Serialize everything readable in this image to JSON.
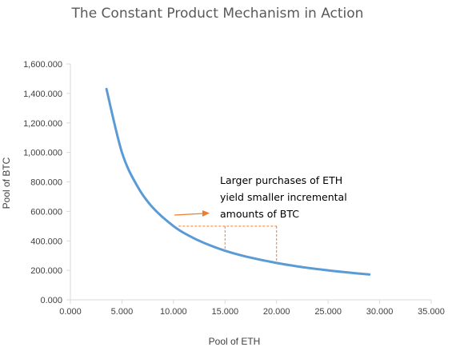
{
  "chart_data": {
    "type": "line",
    "title": "The Constant Product Mechanism in Action",
    "xlabel": "Pool of ETH",
    "ylabel": "Pool of BTC",
    "xlim": [
      0,
      35
    ],
    "ylim": [
      0,
      1600
    ],
    "x_ticks": [
      "0.000",
      "5.000",
      "10.000",
      "15.000",
      "20.000",
      "25.000",
      "30.000",
      "35.000"
    ],
    "y_ticks": [
      "0.000",
      "200.000",
      "400.000",
      "600.000",
      "800.000",
      "1,000.000",
      "1,200.000",
      "1,400.000",
      "1,600.000"
    ],
    "grid": false,
    "legend": "none",
    "series": [
      {
        "color": "#5b9bd5",
        "x": [
          3.5,
          5,
          6.5,
          8,
          10,
          11.5,
          13,
          15,
          17,
          20,
          22.5,
          25,
          27,
          29
        ],
        "values": [
          1430,
          1000,
          770,
          625,
          500,
          435,
          385,
          333,
          294,
          250,
          222,
          200,
          185,
          172
        ]
      }
    ],
    "annotation": {
      "lines": [
        "Larger purchases of ETH",
        "yield smaller incremental",
        "amounts of BTC"
      ],
      "arrow_color": "#ed7d31",
      "guides": {
        "x_start": 10.5,
        "y_top": 500,
        "verticals": [
          {
            "x": 15,
            "y_bottom": 333
          },
          {
            "x": 20,
            "y_bottom": 250
          }
        ]
      }
    }
  }
}
